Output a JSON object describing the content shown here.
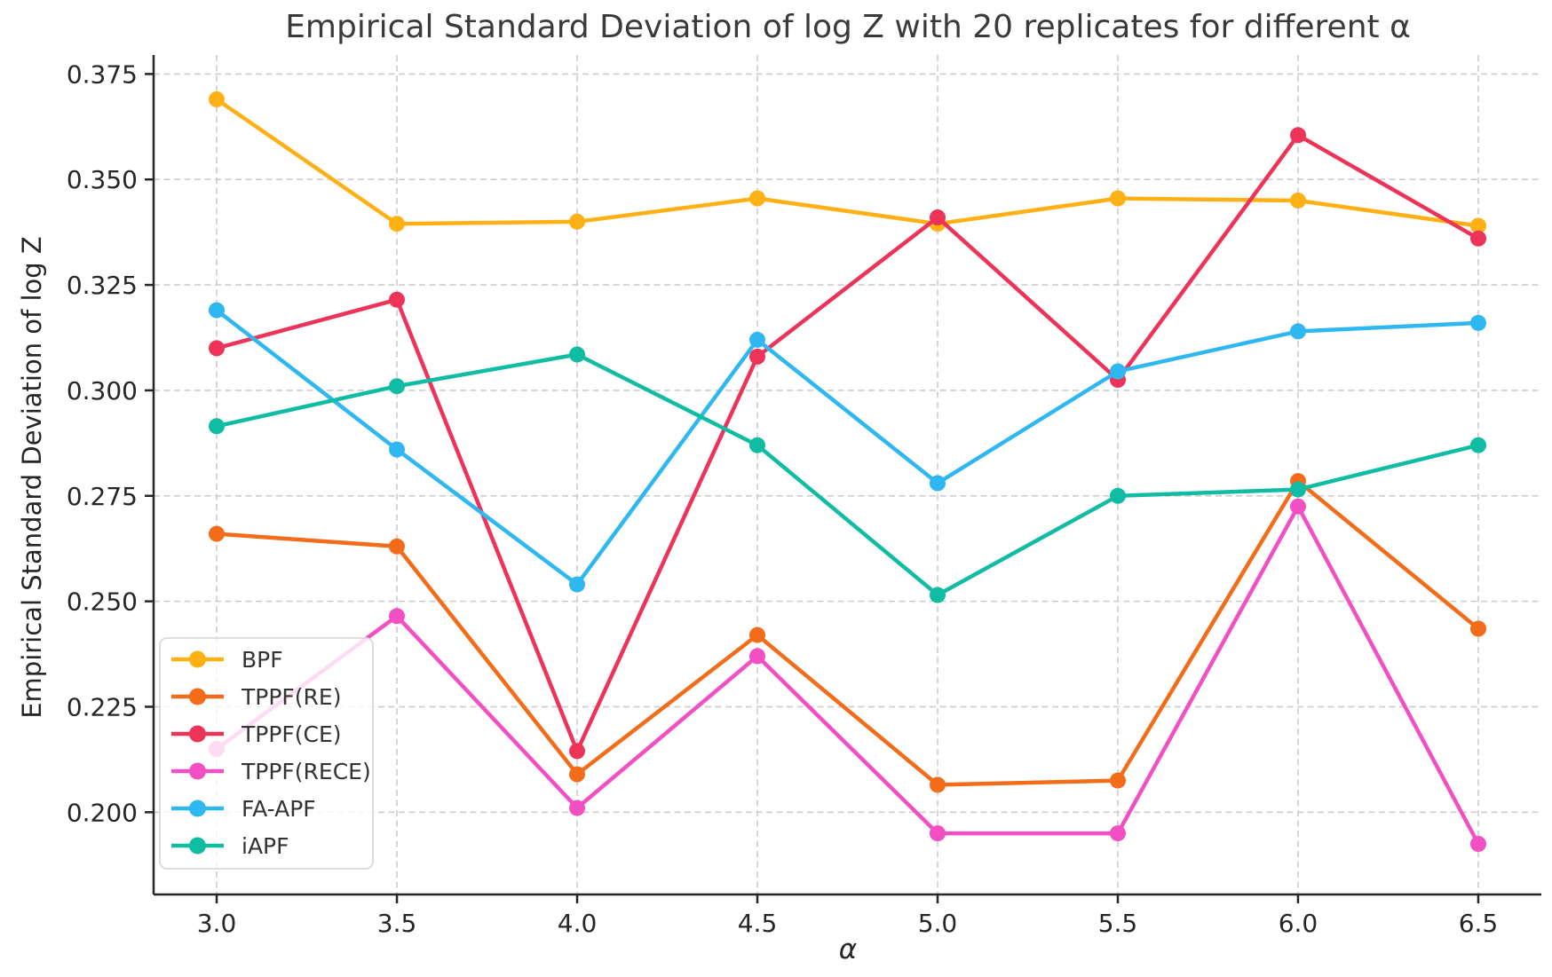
{
  "figure": {
    "title": "Empirical Standard Deviation of log Z with 20 replicates for different α",
    "xlabel": "α",
    "ylabel": "Empirical Standard Deviation of log Z"
  },
  "chart_data": {
    "type": "line",
    "x": [
      3.0,
      3.5,
      4.0,
      4.5,
      5.0,
      5.5,
      6.0,
      6.5
    ],
    "series": [
      {
        "name": "BPF",
        "color": "#FFB014",
        "values": [
          0.369,
          0.3395,
          0.34,
          0.3455,
          0.3395,
          0.3455,
          0.345,
          0.339
        ]
      },
      {
        "name": "TPPF(RE)",
        "color": "#F26C1A",
        "values": [
          0.266,
          0.263,
          0.209,
          0.242,
          0.2065,
          0.2075,
          0.2785,
          0.2435
        ]
      },
      {
        "name": "TPPF(CE)",
        "color": "#EE3359",
        "values": [
          0.31,
          0.3215,
          0.2145,
          0.308,
          0.341,
          0.3025,
          0.3605,
          0.336
        ]
      },
      {
        "name": "TPPF(RECE)",
        "color": "#F24FC3",
        "values": [
          0.215,
          0.2465,
          0.201,
          0.237,
          0.195,
          0.195,
          0.2725,
          0.1925
        ]
      },
      {
        "name": "FA-APF",
        "color": "#2FB7F2",
        "values": [
          0.319,
          0.286,
          0.254,
          0.312,
          0.278,
          0.3045,
          0.314,
          0.316
        ]
      },
      {
        "name": "iAPF",
        "color": "#10BCA4",
        "values": [
          0.2915,
          0.301,
          0.3085,
          0.287,
          0.2515,
          0.275,
          0.2765,
          0.287
        ]
      }
    ],
    "title": "Empirical Standard Deviation of log Z with 20 replicates for different α",
    "xlabel": "α",
    "ylabel": "Empirical Standard Deviation of log Z",
    "xticks": {
      "values": [
        3.0,
        3.5,
        4.0,
        4.5,
        5.0,
        5.5,
        6.0,
        6.5
      ],
      "labels": [
        "3.0",
        "3.5",
        "4.0",
        "4.5",
        "5.0",
        "5.5",
        "6.0",
        "6.5"
      ]
    },
    "yticks": {
      "values": [
        0.375,
        0.35,
        0.325,
        0.3,
        0.275,
        0.25,
        0.225,
        0.2
      ],
      "labels": [
        "0.375",
        "0.350",
        "0.325",
        "0.300",
        "0.275",
        "0.250",
        "0.225",
        "0.200"
      ]
    },
    "xlim": [
      2.825,
      6.675
    ],
    "ylim": [
      0.1805,
      0.3795
    ],
    "grid": {
      "show": true,
      "style": "dashed",
      "color": "#cdcdcd"
    },
    "legend": {
      "position": "lower left",
      "entries": [
        "BPF",
        "TPPF(RE)",
        "TPPF(CE)",
        "TPPF(RECE)",
        "FA-APF",
        "iAPF"
      ]
    },
    "marker": "circle"
  },
  "style": {
    "text_color": "#262626",
    "title_color": "#3a3a3a",
    "spine_color": "#262626",
    "grid_color": "#cdcdcd",
    "legend_bg": "rgba(255,255,255,0.8)",
    "legend_border": "#d9d9d9"
  }
}
